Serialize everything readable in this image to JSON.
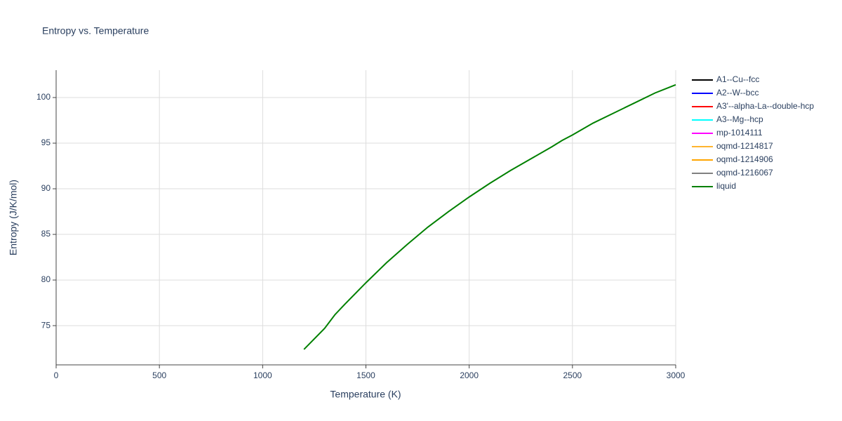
{
  "chart_data": {
    "type": "line",
    "title": "Entropy vs. Temperature",
    "x_label": "Temperature (K)",
    "y_label": "Entropy (J/K/mol)",
    "xlim": [
      0,
      3000
    ],
    "xticks": [
      0,
      500,
      1000,
      1500,
      2000,
      2500,
      3000
    ],
    "ylim": [
      70.7,
      103
    ],
    "yticks": [
      75,
      80,
      85,
      90,
      95,
      100
    ],
    "grid": true,
    "legend": "right",
    "series": [
      {
        "name": "A1--Cu--fcc",
        "color": "#000000",
        "x": [],
        "values": []
      },
      {
        "name": "A2--W--bcc",
        "color": "#0000ff",
        "x": [],
        "values": []
      },
      {
        "name": "A3'--alpha-La--double-hcp",
        "color": "#ff0000",
        "x": [],
        "values": []
      },
      {
        "name": "A3--Mg--hcp",
        "color": "#00ffff",
        "x": [],
        "values": []
      },
      {
        "name": "mp-1014111",
        "color": "#ff00ff",
        "x": [],
        "values": []
      },
      {
        "name": "oqmd-1214817",
        "color": "#ffb52e",
        "x": [],
        "values": []
      },
      {
        "name": "oqmd-1214906",
        "color": "#ffa500",
        "x": [],
        "values": []
      },
      {
        "name": "oqmd-1216067",
        "color": "#808080",
        "x": [],
        "values": []
      },
      {
        "name": "liquid",
        "color": "#008000",
        "x": [
          1200,
          1300,
          1350,
          1400,
          1500,
          1600,
          1700,
          1800,
          1900,
          2000,
          2100,
          2200,
          2300,
          2400,
          2450,
          2500,
          2600,
          2700,
          2800,
          2900,
          3000
        ],
        "values": [
          72.4,
          74.7,
          76.2,
          77.4,
          79.7,
          81.9,
          83.9,
          85.8,
          87.5,
          89.1,
          90.6,
          92.0,
          93.3,
          94.6,
          95.3,
          95.9,
          97.2,
          98.3,
          99.4,
          100.5,
          101.4
        ]
      }
    ]
  }
}
